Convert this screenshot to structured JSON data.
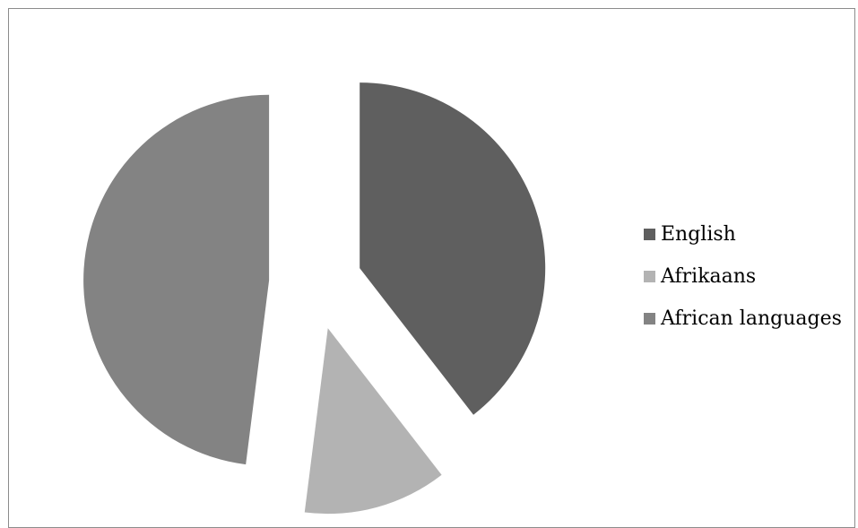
{
  "chart_data": {
    "type": "pie",
    "exploded": true,
    "legend_position": "right",
    "slices": [
      {
        "label": "English",
        "value": 39.5,
        "color": "#5f5f5f"
      },
      {
        "label": "Afrikaans",
        "value": 12.5,
        "color": "#b3b3b3"
      },
      {
        "label": "African languages",
        "value": 48.0,
        "color": "#838383"
      }
    ]
  }
}
